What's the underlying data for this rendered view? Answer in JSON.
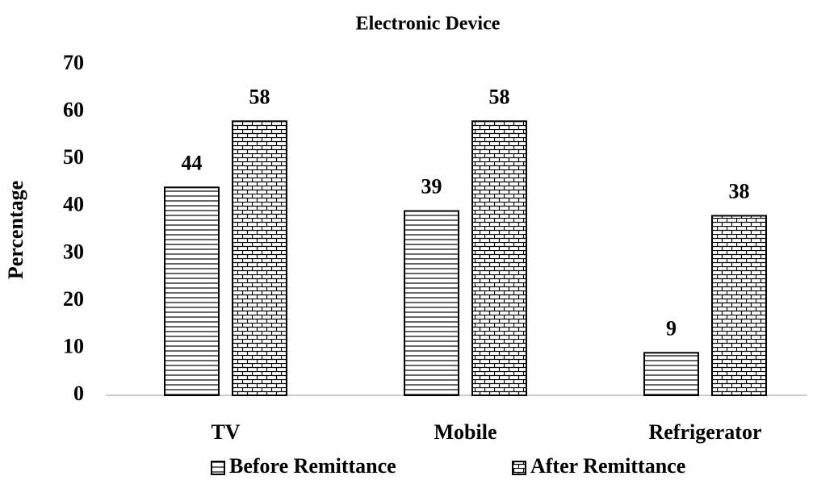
{
  "chart_data": {
    "type": "bar",
    "title": "Electronic Device",
    "ylabel": "Percentage",
    "categories": [
      "TV",
      "Mobile",
      "Refrigerator"
    ],
    "series": [
      {
        "name": "Before Remittance",
        "color": "#000000",
        "pattern": "horizontal",
        "values": [
          44,
          39,
          9
        ]
      },
      {
        "name": "After Remittance",
        "color": "#000000",
        "pattern": "brick",
        "values": [
          58,
          58,
          38
        ]
      }
    ],
    "ylim": [
      0,
      70
    ],
    "yticks": [
      0,
      10,
      20,
      30,
      40,
      50,
      60,
      70
    ],
    "grid": false,
    "legend": "bottom"
  }
}
